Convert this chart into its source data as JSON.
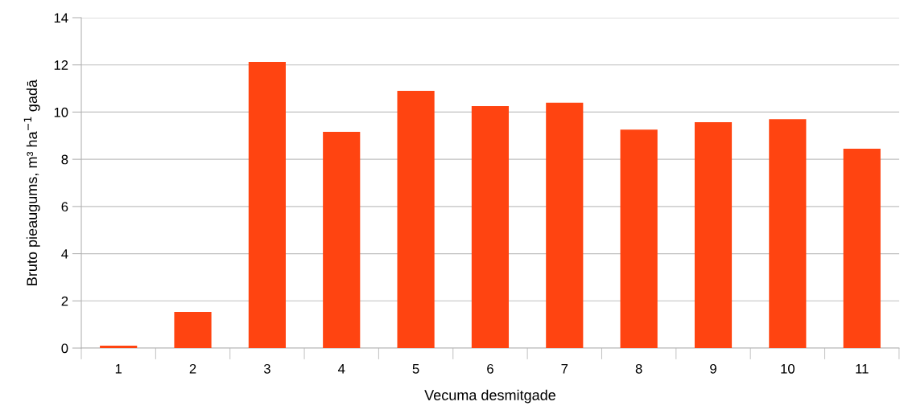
{
  "chart_data": {
    "type": "bar",
    "xlabel": "Vecuma desmitgade",
    "ylabel": "Bruto pieaugums, m³ ha$^{−1}$ gadā",
    "categories": [
      "1",
      "2",
      "3",
      "4",
      "5",
      "6",
      "7",
      "8",
      "9",
      "10",
      "11"
    ],
    "values": [
      0.1,
      1.53,
      12.13,
      9.16,
      10.9,
      10.25,
      10.4,
      9.26,
      9.57,
      9.7,
      8.45
    ],
    "color": "#ff4411",
    "ylim": [
      0,
      14
    ],
    "yticks": [
      0,
      2,
      4,
      6,
      8,
      10,
      12,
      14
    ],
    "grid": "y",
    "legend": false
  }
}
